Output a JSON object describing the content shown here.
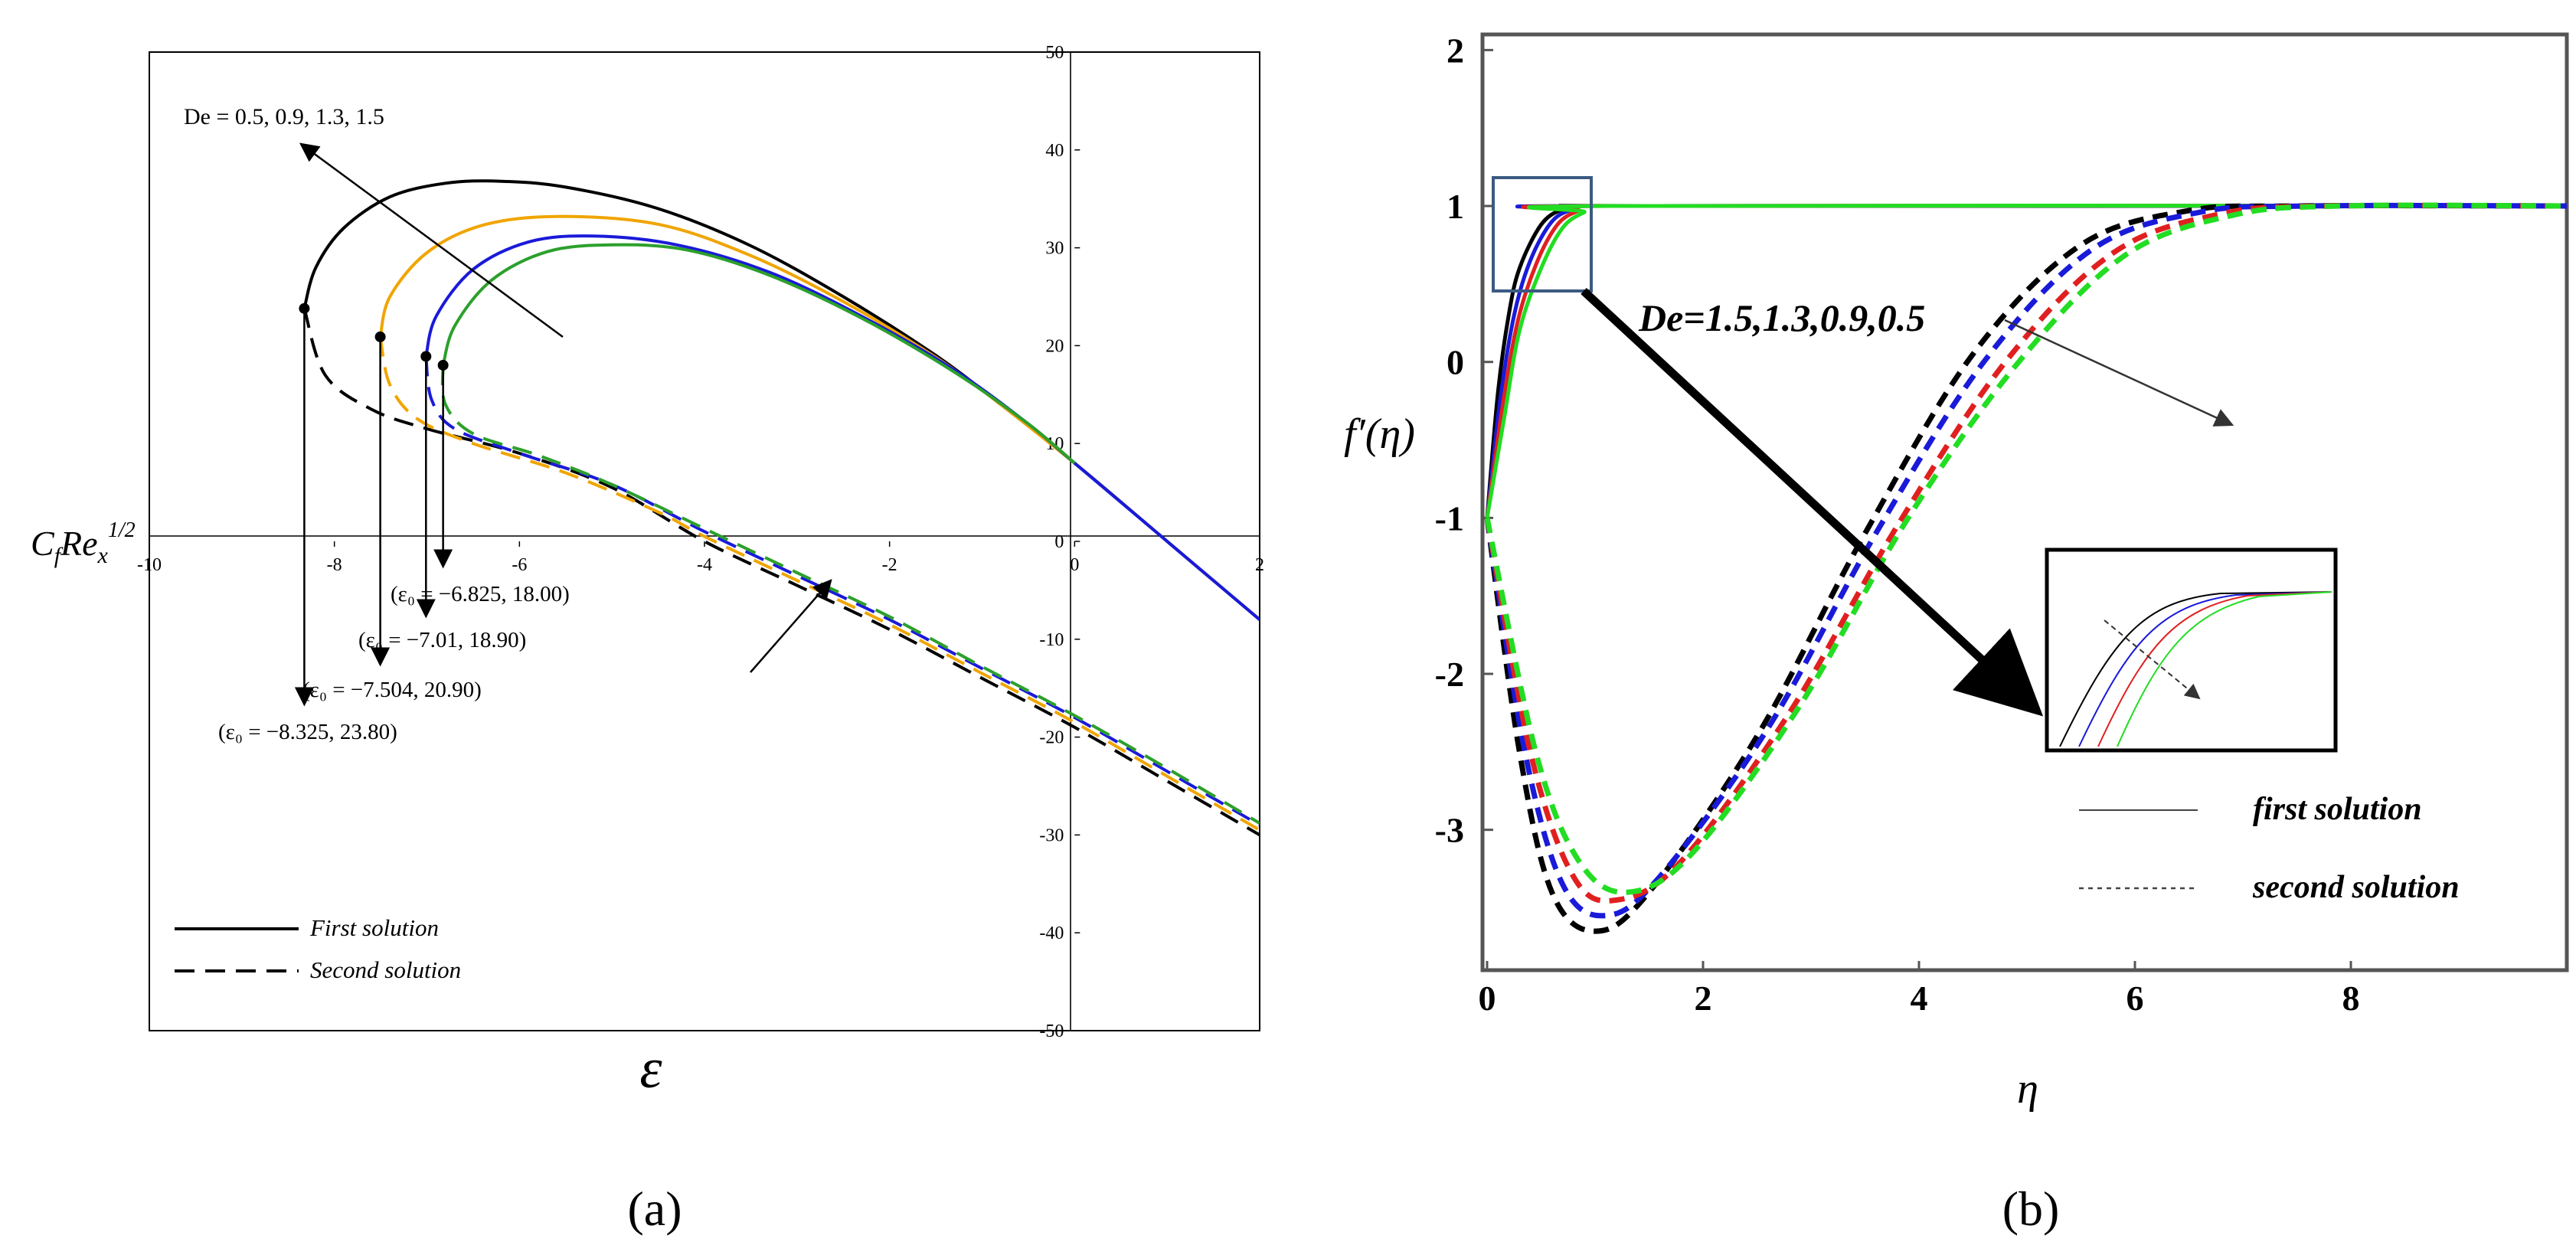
{
  "figure_labels": [
    "(a)",
    "(b)"
  ],
  "chart_data": [
    {
      "type": "line",
      "panel": "(a)",
      "xlabel": "ε",
      "ylabel": "C_f Re_x^{1/2}",
      "xlim": [
        -10,
        2
      ],
      "ylim": [
        -50,
        50
      ],
      "x_ticks": [
        -10,
        -8,
        -6,
        -4,
        -2,
        0,
        2
      ],
      "y_ticks": [
        50,
        40,
        30,
        20,
        10,
        0,
        -10,
        -20,
        -30,
        -40,
        -50
      ],
      "grid": false,
      "legend": [
        {
          "label": "First solution",
          "style": "solid"
        },
        {
          "label": "Second solution",
          "style": "dashed"
        }
      ],
      "parameter_label": "De = 0.5, 0.9, 1.3, 1.5",
      "critical_points": [
        {
          "label": "(ε₀ = −8.325, 23.80)",
          "x": -8.325,
          "y": 23.8
        },
        {
          "label": "(ε₀ = −7.504, 20.90)",
          "x": -7.504,
          "y": 20.9
        },
        {
          "label": "(ε₀ = −7.01, 18.90)",
          "x": -7.01,
          "y": 18.9
        },
        {
          "label": "(ε₀ = −6.825, 18.00)",
          "x": -6.825,
          "y": 18.0
        }
      ],
      "series": [
        {
          "name": "De=0.5 first",
          "color": "#000000",
          "style": "solid",
          "points": [
            [
              -8.325,
              23.8
            ],
            [
              -8.2,
              28
            ],
            [
              -7.9,
              32
            ],
            [
              -7.4,
              35.2
            ],
            [
              -6.8,
              36.6
            ],
            [
              -6.2,
              36.8
            ],
            [
              -5.5,
              36.2
            ],
            [
              -4.5,
              34.0
            ],
            [
              -3.5,
              30.2
            ],
            [
              -2.5,
              25.0
            ],
            [
              -1.5,
              19.0
            ],
            [
              -0.8,
              14.0
            ],
            [
              0,
              8.0
            ],
            [
              1,
              0
            ],
            [
              2,
              -8
            ]
          ]
        },
        {
          "name": "De=0.9 first",
          "color": "#f0a500",
          "style": "solid",
          "points": [
            [
              -7.504,
              20.9
            ],
            [
              -7.4,
              25
            ],
            [
              -7.0,
              29.5
            ],
            [
              -6.4,
              32.3
            ],
            [
              -5.6,
              33.2
            ],
            [
              -4.5,
              32.4
            ],
            [
              -3.5,
              29.2
            ],
            [
              -2.5,
              24.5
            ],
            [
              -1.5,
              18.8
            ],
            [
              -0.8,
              14.0
            ],
            [
              0,
              8.0
            ]
          ]
        },
        {
          "name": "De=1.3 first",
          "color": "#1a1ad9",
          "style": "solid",
          "points": [
            [
              -7.01,
              18.9
            ],
            [
              -6.9,
              23
            ],
            [
              -6.5,
              27.8
            ],
            [
              -5.9,
              30.6
            ],
            [
              -5.2,
              31.2
            ],
            [
              -4.3,
              30.3
            ],
            [
              -3.3,
              27.5
            ],
            [
              -2.3,
              23.0
            ],
            [
              -1.3,
              17.5
            ],
            [
              -0.5,
              12.0
            ],
            [
              0,
              8.0
            ],
            [
              1,
              0
            ],
            [
              2,
              -8
            ]
          ]
        },
        {
          "name": "De=1.5 first",
          "color": "#2ca02c",
          "style": "solid",
          "points": [
            [
              -6.825,
              18.0
            ],
            [
              -6.7,
              22
            ],
            [
              -6.3,
              26.7
            ],
            [
              -5.7,
              29.6
            ],
            [
              -5.0,
              30.3
            ],
            [
              -4.2,
              29.8
            ],
            [
              -3.3,
              27.2
            ],
            [
              -2.3,
              22.8
            ],
            [
              -1.3,
              17.3
            ],
            [
              -0.5,
              12.0
            ],
            [
              0,
              8.0
            ]
          ]
        },
        {
          "name": "De=0.5 second",
          "color": "#000000",
          "style": "dashed",
          "points": [
            [
              -8.325,
              23.8
            ],
            [
              -8.1,
              17.0
            ],
            [
              -7.6,
              13.5
            ],
            [
              -7.0,
              11.5
            ],
            [
              -6.0,
              9.0
            ],
            [
              -5.0,
              5.5
            ],
            [
              -4.0,
              0
            ],
            [
              -3.0,
              -4.5
            ],
            [
              -2.0,
              -9.0
            ],
            [
              -1.0,
              -14.0
            ],
            [
              0,
              -19.0
            ],
            [
              1,
              -24.5
            ],
            [
              2,
              -30.0
            ]
          ]
        },
        {
          "name": "De=0.9 second",
          "color": "#f0a500",
          "style": "dashed",
          "points": [
            [
              -7.504,
              20.9
            ],
            [
              -7.4,
              16.0
            ],
            [
              -7.1,
              12.5
            ],
            [
              -6.5,
              10.0
            ],
            [
              -5.5,
              7.0
            ],
            [
              -4.5,
              3.0
            ],
            [
              -4.0,
              0.5
            ],
            [
              -3.0,
              -4.0
            ],
            [
              -2.0,
              -8.5
            ],
            [
              -1.0,
              -13.5
            ],
            [
              0,
              -18.5
            ],
            [
              1,
              -24.0
            ],
            [
              2,
              -29.5
            ]
          ]
        },
        {
          "name": "De=1.3 second",
          "color": "#1a1ad9",
          "style": "dashed",
          "points": [
            [
              -7.01,
              18.9
            ],
            [
              -6.95,
              14.5
            ],
            [
              -6.7,
              11.5
            ],
            [
              -6.0,
              9.0
            ],
            [
              -5.0,
              5.8
            ],
            [
              -4.0,
              1.0
            ],
            [
              -3.0,
              -3.5
            ],
            [
              -2.0,
              -8.0
            ],
            [
              -1.0,
              -13.0
            ],
            [
              0,
              -18.0
            ],
            [
              1,
              -23.5
            ],
            [
              2,
              -29.0
            ]
          ]
        },
        {
          "name": "De=1.5 second",
          "color": "#2ca02c",
          "style": "dashed",
          "points": [
            [
              -6.825,
              18.0
            ],
            [
              -6.8,
              14.0
            ],
            [
              -6.5,
              11.0
            ],
            [
              -5.8,
              8.8
            ],
            [
              -5.0,
              5.8
            ],
            [
              -4.0,
              1.3
            ],
            [
              -3.0,
              -3.2
            ],
            [
              -2.0,
              -7.7
            ],
            [
              -1.0,
              -12.8
            ],
            [
              0,
              -17.8
            ],
            [
              1,
              -23.2
            ],
            [
              2,
              -28.8
            ]
          ]
        }
      ]
    },
    {
      "type": "line",
      "panel": "(b)",
      "xlabel": "η",
      "ylabel": "f′(η)",
      "xlim": [
        0,
        10
      ],
      "ylim": [
        -3.9,
        2.1
      ],
      "x_ticks": [
        0,
        2,
        4,
        6,
        8
      ],
      "y_ticks": [
        2,
        1,
        0,
        -1,
        -2,
        -3
      ],
      "grid": false,
      "annotation": "De=1.5,1.3,0.9,0.5",
      "legend": [
        {
          "label": "first solution",
          "style": "solid"
        },
        {
          "label": "second solution",
          "style": "dashed"
        }
      ],
      "series": [
        {
          "name": "De=1.5 first",
          "color": "#000000",
          "style": "solid",
          "points": [
            [
              0,
              -1
            ],
            [
              0.1,
              -0.2
            ],
            [
              0.2,
              0.3
            ],
            [
              0.3,
              0.6
            ],
            [
              0.5,
              0.88
            ],
            [
              0.7,
              0.98
            ],
            [
              0.9,
              1.0
            ],
            [
              1.5,
              1.0
            ],
            [
              10,
              1.0
            ]
          ]
        },
        {
          "name": "De=1.3 first",
          "color": "#1a1ad9",
          "style": "solid",
          "points": [
            [
              0,
              -1
            ],
            [
              0.12,
              -0.25
            ],
            [
              0.25,
              0.3
            ],
            [
              0.4,
              0.65
            ],
            [
              0.6,
              0.9
            ],
            [
              0.8,
              0.98
            ],
            [
              1.0,
              1.0
            ],
            [
              10,
              1.0
            ]
          ]
        },
        {
          "name": "De=0.9 first",
          "color": "#e02020",
          "style": "solid",
          "points": [
            [
              0,
              -1
            ],
            [
              0.14,
              -0.3
            ],
            [
              0.28,
              0.25
            ],
            [
              0.45,
              0.62
            ],
            [
              0.65,
              0.88
            ],
            [
              0.85,
              0.97
            ],
            [
              1.05,
              1.0
            ],
            [
              10,
              1.0
            ]
          ]
        },
        {
          "name": "De=0.5 first",
          "color": "#22dd22",
          "style": "solid",
          "points": [
            [
              0,
              -1
            ],
            [
              0.16,
              -0.35
            ],
            [
              0.3,
              0.2
            ],
            [
              0.5,
              0.6
            ],
            [
              0.7,
              0.86
            ],
            [
              0.9,
              0.96
            ],
            [
              1.1,
              1.0
            ],
            [
              10,
              1.0
            ]
          ]
        },
        {
          "name": "De=1.5 second",
          "color": "#000000",
          "style": "dashed",
          "points": [
            [
              0,
              -1
            ],
            [
              0.3,
              -2.5
            ],
            [
              0.6,
              -3.4
            ],
            [
              1.0,
              -3.65
            ],
            [
              1.5,
              -3.4
            ],
            [
              2.5,
              -2.4
            ],
            [
              3.5,
              -1.1
            ],
            [
              4.5,
              0.05
            ],
            [
              5.5,
              0.75
            ],
            [
              6.5,
              0.97
            ],
            [
              7.5,
              1.0
            ],
            [
              10,
              1.0
            ]
          ]
        },
        {
          "name": "De=1.3 second",
          "color": "#1a1ad9",
          "style": "dashed",
          "points": [
            [
              0,
              -1
            ],
            [
              0.35,
              -2.5
            ],
            [
              0.7,
              -3.35
            ],
            [
              1.1,
              -3.55
            ],
            [
              1.6,
              -3.3
            ],
            [
              2.6,
              -2.35
            ],
            [
              3.6,
              -1.1
            ],
            [
              4.6,
              0.0
            ],
            [
              5.6,
              0.72
            ],
            [
              6.6,
              0.96
            ],
            [
              7.6,
              1.0
            ],
            [
              10,
              1.0
            ]
          ]
        },
        {
          "name": "De=0.9 second",
          "color": "#e02020",
          "style": "dashed",
          "points": [
            [
              0,
              -1
            ],
            [
              0.4,
              -2.5
            ],
            [
              0.8,
              -3.3
            ],
            [
              1.2,
              -3.45
            ],
            [
              1.8,
              -3.2
            ],
            [
              2.8,
              -2.25
            ],
            [
              3.8,
              -1.05
            ],
            [
              4.8,
              0.0
            ],
            [
              5.8,
              0.7
            ],
            [
              6.8,
              0.95
            ],
            [
              7.8,
              1.0
            ],
            [
              10,
              1.0
            ]
          ]
        },
        {
          "name": "De=0.5 second",
          "color": "#22dd22",
          "style": "dashed",
          "points": [
            [
              0,
              -1
            ],
            [
              0.45,
              -2.5
            ],
            [
              0.85,
              -3.2
            ],
            [
              1.3,
              -3.4
            ],
            [
              1.9,
              -3.15
            ],
            [
              2.9,
              -2.2
            ],
            [
              3.9,
              -1.0
            ],
            [
              4.9,
              -0.02
            ],
            [
              5.9,
              0.68
            ],
            [
              6.9,
              0.94
            ],
            [
              7.9,
              1.0
            ],
            [
              10,
              1.0
            ]
          ]
        }
      ]
    }
  ]
}
